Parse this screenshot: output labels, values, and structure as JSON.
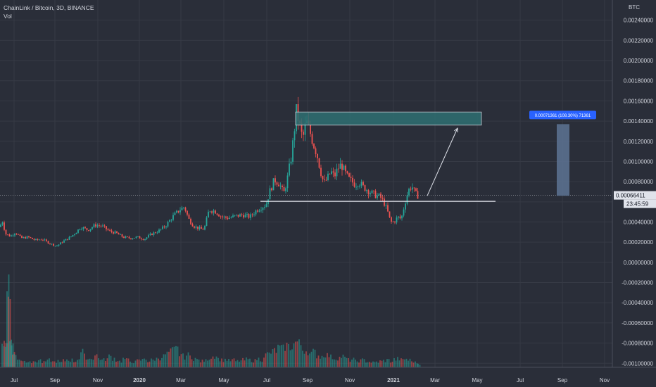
{
  "header": {
    "symbol_title": "ChainLink / Bitcoin, 3D, BINANCE",
    "indicator": "Vol",
    "currency": "BTC"
  },
  "colors": {
    "background": "#2a2e39",
    "up": "#26a69a",
    "down": "#ef5350",
    "grid": "#363a45",
    "text": "#d1d4dc",
    "zone": "#2e6f72",
    "measure_box": "#5d7394",
    "measure_label": "#2962ff"
  },
  "chart_data": {
    "type": "candlestick",
    "xlabel": "",
    "ylabel": "",
    "x_ticks": [
      "Jul",
      "Sep",
      "Nov",
      "2020",
      "Mar",
      "May",
      "Jul",
      "Sep",
      "Nov",
      "2021",
      "Mar",
      "May",
      "Jul",
      "Sep",
      "Nov"
    ],
    "y_ticks": [
      "0.00240000",
      "0.00220000",
      "0.00200000",
      "0.00180000",
      "0.00160000",
      "0.00140000",
      "0.00120000",
      "0.00100000",
      "0.00080000",
      "0.00060000",
      "0.00040000",
      "0.00020000",
      "0.00000000",
      "-0.00020000",
      "-0.00040000",
      "-0.00060000",
      "-0.00080000",
      "-0.00100000"
    ],
    "ylim": [
      -0.00104,
      0.0026
    ],
    "current_price": "0.00066411",
    "countdown": "23:45:59",
    "price_path": [
      [
        0,
        0.00035
      ],
      [
        3,
        0.00042
      ],
      [
        8,
        0.00028
      ],
      [
        15,
        0.00026
      ],
      [
        22,
        0.0003
      ],
      [
        30,
        0.00024
      ],
      [
        40,
        0.00025
      ],
      [
        50,
        0.00022
      ],
      [
        60,
        0.00023
      ],
      [
        70,
        0.00019
      ],
      [
        80,
        0.00016
      ],
      [
        90,
        0.00021
      ],
      [
        100,
        0.00025
      ],
      [
        108,
        0.0003
      ],
      [
        115,
        0.00035
      ],
      [
        125,
        0.00032
      ],
      [
        135,
        0.00037
      ],
      [
        145,
        0.00036
      ],
      [
        155,
        0.00031
      ],
      [
        165,
        0.00029
      ],
      [
        175,
        0.00025
      ],
      [
        185,
        0.00024
      ],
      [
        195,
        0.00025
      ],
      [
        205,
        0.00023
      ],
      [
        215,
        0.00028
      ],
      [
        225,
        0.00031
      ],
      [
        235,
        0.00036
      ],
      [
        245,
        0.00045
      ],
      [
        255,
        0.00052
      ],
      [
        262,
        0.00055
      ],
      [
        268,
        0.00043
      ],
      [
        275,
        0.00036
      ],
      [
        285,
        0.00033
      ],
      [
        290,
        0.00033
      ],
      [
        297,
        0.00052
      ],
      [
        305,
        0.00051
      ],
      [
        315,
        0.00045
      ],
      [
        325,
        0.00044
      ],
      [
        335,
        0.00046
      ],
      [
        345,
        0.00047
      ],
      [
        355,
        0.00045
      ],
      [
        365,
        0.00052
      ],
      [
        372,
        0.00055
      ],
      [
        378,
        0.00057
      ],
      [
        383,
        0.0007
      ],
      [
        390,
        0.00082
      ],
      [
        397,
        0.00078
      ],
      [
        403,
        0.00068
      ],
      [
        408,
        0.00082
      ],
      [
        414,
        0.00105
      ],
      [
        418,
        0.0013
      ],
      [
        421,
        0.0015
      ],
      [
        425,
        0.00138
      ],
      [
        430,
        0.00122
      ],
      [
        435,
        0.0014
      ],
      [
        440,
        0.0013
      ],
      [
        445,
        0.00118
      ],
      [
        450,
        0.00108
      ],
      [
        455,
        0.00092
      ],
      [
        460,
        0.00078
      ],
      [
        465,
        0.00083
      ],
      [
        470,
        0.0009
      ],
      [
        475,
        0.00085
      ],
      [
        480,
        0.00093
      ],
      [
        485,
        0.00097
      ],
      [
        490,
        0.00089
      ],
      [
        495,
        0.00083
      ],
      [
        500,
        0.0008
      ],
      [
        505,
        0.00077
      ],
      [
        510,
        0.0008
      ],
      [
        515,
        0.00075
      ],
      [
        520,
        0.00073
      ],
      [
        525,
        0.0007
      ],
      [
        530,
        0.00068
      ],
      [
        535,
        0.00066
      ],
      [
        540,
        0.00065
      ],
      [
        545,
        0.0006
      ],
      [
        550,
        0.00052
      ],
      [
        555,
        0.0004
      ],
      [
        560,
        0.0004
      ],
      [
        565,
        0.00045
      ],
      [
        570,
        0.00043
      ],
      [
        575,
        0.00058
      ],
      [
        580,
        0.00071
      ],
      [
        585,
        0.00076
      ],
      [
        590,
        0.00068
      ],
      [
        594,
        0.00066
      ]
    ],
    "support_line": {
      "price": 0.000605,
      "x_start": 370,
      "x_end": 704
    },
    "resistance_zone": {
      "price_top": 0.00149,
      "price_bottom": 0.00136,
      "x_start": 420,
      "x_end": 684
    },
    "projection_arrow": {
      "from": [
        607,
        0.00066
      ],
      "to": [
        650,
        0.00133
      ]
    },
    "measure": {
      "label": "0.00071361 (108.30%) 71361",
      "price_top": 0.00137,
      "price_bottom": 0.00066,
      "x_start": 791,
      "x_end": 809
    },
    "volume": [
      [
        3,
        40
      ],
      [
        6,
        35
      ],
      [
        8,
        45
      ],
      [
        10,
        145
      ],
      [
        12,
        115
      ],
      [
        14,
        50
      ],
      [
        16,
        40
      ],
      [
        18,
        25
      ],
      [
        20,
        20
      ],
      [
        25,
        15
      ],
      [
        30,
        12
      ],
      [
        35,
        10
      ],
      [
        40,
        12
      ],
      [
        45,
        8
      ],
      [
        50,
        10
      ],
      [
        55,
        12
      ],
      [
        60,
        8
      ],
      [
        65,
        10
      ],
      [
        70,
        12
      ],
      [
        75,
        9
      ],
      [
        80,
        10
      ],
      [
        85,
        8
      ],
      [
        90,
        11
      ],
      [
        95,
        13
      ],
      [
        100,
        12
      ],
      [
        105,
        10
      ],
      [
        110,
        15
      ],
      [
        115,
        25
      ],
      [
        120,
        18
      ],
      [
        125,
        14
      ],
      [
        130,
        16
      ],
      [
        135,
        20
      ],
      [
        140,
        15
      ],
      [
        145,
        12
      ],
      [
        150,
        14
      ],
      [
        155,
        18
      ],
      [
        160,
        15
      ],
      [
        165,
        12
      ],
      [
        170,
        10
      ],
      [
        175,
        14
      ],
      [
        180,
        12
      ],
      [
        185,
        10
      ],
      [
        190,
        9
      ],
      [
        195,
        11
      ],
      [
        200,
        12
      ],
      [
        205,
        15
      ],
      [
        210,
        10
      ],
      [
        215,
        12
      ],
      [
        220,
        14
      ],
      [
        225,
        16
      ],
      [
        230,
        18
      ],
      [
        235,
        22
      ],
      [
        240,
        25
      ],
      [
        245,
        28
      ],
      [
        250,
        30
      ],
      [
        255,
        22
      ],
      [
        260,
        18
      ],
      [
        265,
        20
      ],
      [
        270,
        18
      ],
      [
        275,
        15
      ],
      [
        280,
        12
      ],
      [
        285,
        10
      ],
      [
        290,
        11
      ],
      [
        295,
        15
      ],
      [
        300,
        18
      ],
      [
        305,
        20
      ],
      [
        310,
        14
      ],
      [
        315,
        12
      ],
      [
        320,
        13
      ],
      [
        325,
        11
      ],
      [
        330,
        12
      ],
      [
        335,
        10
      ],
      [
        340,
        11
      ],
      [
        345,
        12
      ],
      [
        350,
        13
      ],
      [
        355,
        12
      ],
      [
        360,
        11
      ],
      [
        365,
        14
      ],
      [
        370,
        13
      ],
      [
        375,
        20
      ],
      [
        380,
        22
      ],
      [
        385,
        25
      ],
      [
        390,
        28
      ],
      [
        395,
        32
      ],
      [
        400,
        30
      ],
      [
        405,
        36
      ],
      [
        410,
        34
      ],
      [
        415,
        38
      ],
      [
        420,
        42
      ],
      [
        425,
        38
      ],
      [
        430,
        30
      ],
      [
        435,
        28
      ],
      [
        440,
        22
      ],
      [
        445,
        25
      ],
      [
        450,
        20
      ],
      [
        455,
        18
      ],
      [
        460,
        22
      ],
      [
        465,
        20
      ],
      [
        470,
        17
      ],
      [
        475,
        15
      ],
      [
        480,
        16
      ],
      [
        485,
        18
      ],
      [
        490,
        15
      ],
      [
        495,
        12
      ],
      [
        500,
        13
      ],
      [
        505,
        10
      ],
      [
        510,
        11
      ],
      [
        515,
        12
      ],
      [
        520,
        10
      ],
      [
        525,
        9
      ],
      [
        530,
        8
      ],
      [
        535,
        9
      ],
      [
        540,
        10
      ],
      [
        545,
        11
      ],
      [
        550,
        12
      ],
      [
        555,
        10
      ],
      [
        560,
        13
      ],
      [
        565,
        14
      ],
      [
        570,
        12
      ],
      [
        575,
        14
      ],
      [
        580,
        12
      ],
      [
        585,
        10
      ],
      [
        590,
        8
      ],
      [
        594,
        6
      ]
    ]
  }
}
